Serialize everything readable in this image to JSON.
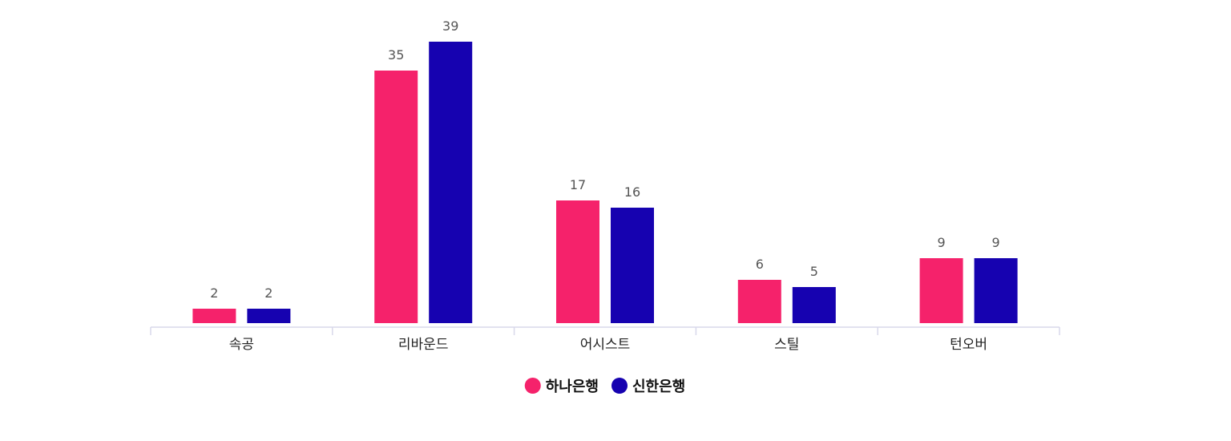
{
  "chart_data": {
    "type": "bar",
    "categories": [
      "속공",
      "리바운드",
      "어시스트",
      "스틸",
      "턴오버"
    ],
    "series": [
      {
        "name": "하나은행",
        "values": [
          2,
          35,
          17,
          6,
          9
        ],
        "color": "#f5226b"
      },
      {
        "name": "신한은행",
        "values": [
          2,
          39,
          16,
          5,
          9
        ],
        "color": "#1602b0"
      }
    ],
    "ylim": [
      0,
      39
    ],
    "grid": false,
    "data_labels": true,
    "legend_position": "bottom-center",
    "axis_color": "#d8d8ea"
  }
}
